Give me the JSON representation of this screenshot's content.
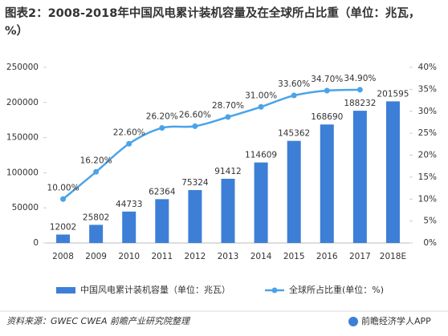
{
  "chart_data": {
    "type": "bar_line",
    "title": "图表2：2008-2018年中国风电累计装机容量及在全球所占比重（单位：兆瓦，%）",
    "categories": [
      "2008",
      "2009",
      "2010",
      "2011",
      "2012",
      "2013",
      "2014",
      "2015",
      "2016",
      "2017",
      "2018E"
    ],
    "series": [
      {
        "name": "中国风电累计装机容量（单位：兆瓦）",
        "type": "bar",
        "color": "#3d7fd6",
        "values": [
          12002,
          25802,
          44733,
          62364,
          75324,
          91412,
          114609,
          145362,
          168690,
          188232,
          201595
        ]
      },
      {
        "name": "全球所占比重(单位：%)",
        "type": "line",
        "axis": "y2",
        "color": "#4aa3e8",
        "values": [
          10,
          16.2,
          22.6,
          26.2,
          26.6,
          28.7,
          31,
          33.6,
          34.7,
          34.9,
          null
        ],
        "value_labels": [
          "10.00%",
          "16.20%",
          "22.60%",
          "26.20%",
          "26.60%",
          "28.70%",
          "31.00%",
          "33.60%",
          "34.70%",
          "34.90%",
          null
        ]
      }
    ],
    "ylim": [
      0,
      250000
    ],
    "yticks": [
      0,
      50000,
      100000,
      150000,
      200000,
      250000
    ],
    "y2lim": [
      0,
      40
    ],
    "y2ticks": [
      {
        "value": 0,
        "label": "0%"
      },
      {
        "value": 5,
        "label": "5%"
      },
      {
        "value": 10,
        "label": "10%"
      },
      {
        "value": 15,
        "label": "15%"
      },
      {
        "value": 20,
        "label": "20%"
      },
      {
        "value": 25,
        "label": "25%"
      },
      {
        "value": 30,
        "label": "30%"
      },
      {
        "value": 35,
        "label": "35%"
      },
      {
        "value": 40,
        "label": "40%"
      }
    ],
    "legend": "bottom",
    "source": "资料来源：GWEC CWEA 前瞻产业研究院整理",
    "brand": "前瞻经济学人APP"
  }
}
